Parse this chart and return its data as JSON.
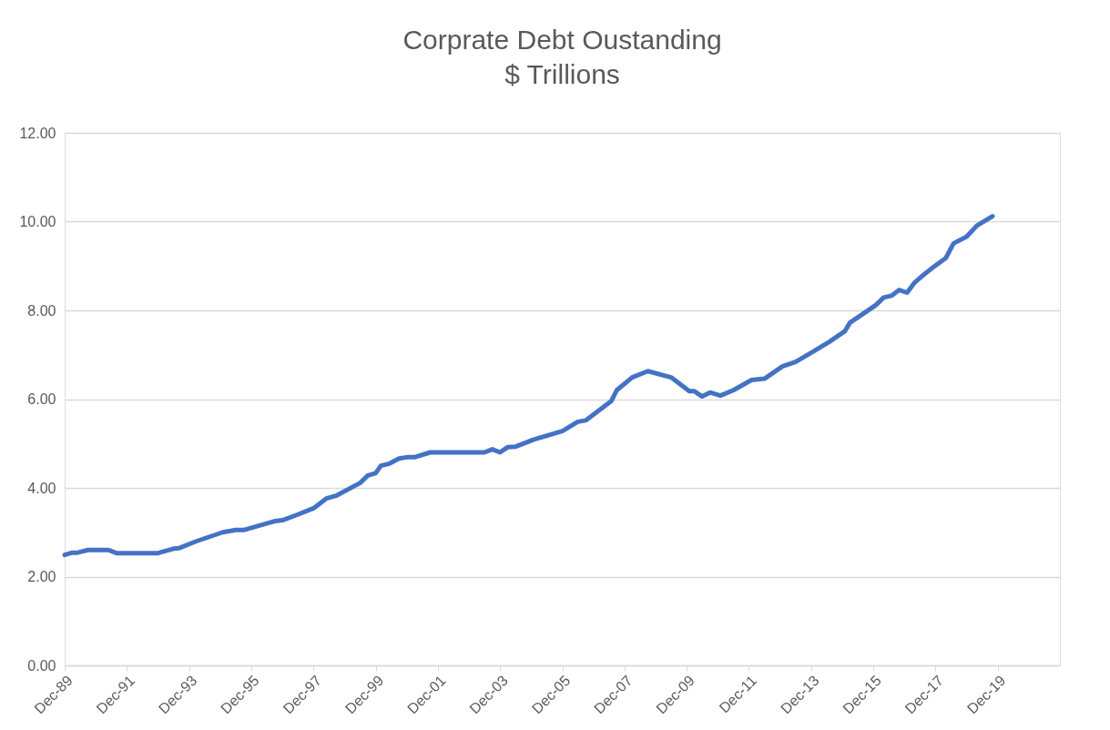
{
  "chart_data": {
    "type": "line",
    "title": "Corprate Debt Oustanding\n$ Trillions",
    "x": [
      "1989-12",
      "1990-03",
      "1990-05",
      "1990-09",
      "1991-05",
      "1991-08",
      "1992-12",
      "1993-06",
      "1993-08",
      "1994-03",
      "1995-01",
      "1995-06",
      "1995-09",
      "1996-09",
      "1996-12",
      "1997-06",
      "1997-12",
      "1998-05",
      "1998-09",
      "1999-06",
      "1999-09",
      "1999-12",
      "2000-02",
      "2000-05",
      "2000-09",
      "2000-12",
      "2001-03",
      "2001-09",
      "2003-06",
      "2003-09",
      "2003-12",
      "2004-03",
      "2004-06",
      "2005-01",
      "2005-12",
      "2006-06",
      "2006-09",
      "2007-07",
      "2007-09",
      "2008-03",
      "2008-09",
      "2009-06",
      "2010-01",
      "2010-03",
      "2010-06",
      "2010-09",
      "2011-01",
      "2011-06",
      "2012-01",
      "2012-06",
      "2013-01",
      "2013-06",
      "2014-01",
      "2014-07",
      "2015-01",
      "2015-03",
      "2016-01",
      "2016-04",
      "2016-07",
      "2016-10",
      "2017-01",
      "2017-04",
      "2017-07",
      "2017-11",
      "2018-04",
      "2018-07",
      "2018-12",
      "2019-04",
      "2019-10"
    ],
    "series": [
      {
        "color": "#4472c4",
        "values": [
          2.49,
          2.54,
          2.54,
          2.6,
          2.6,
          2.53,
          2.53,
          2.63,
          2.64,
          2.8,
          3.0,
          3.05,
          3.05,
          3.25,
          3.27,
          3.4,
          3.54,
          3.76,
          3.83,
          4.11,
          4.28,
          4.33,
          4.5,
          4.54,
          4.66,
          4.69,
          4.69,
          4.8,
          4.8,
          4.87,
          4.8,
          4.92,
          4.93,
          5.09,
          5.28,
          5.49,
          5.52,
          5.96,
          6.2,
          6.49,
          6.63,
          6.49,
          6.18,
          6.18,
          6.06,
          6.15,
          6.08,
          6.2,
          6.43,
          6.46,
          6.74,
          6.84,
          7.08,
          7.29,
          7.53,
          7.72,
          8.12,
          8.29,
          8.33,
          8.46,
          8.4,
          8.63,
          8.78,
          8.97,
          9.18,
          9.51,
          9.66,
          9.91,
          10.12
        ]
      }
    ],
    "xlim": [
      "1989-12",
      "2021-12"
    ],
    "xticks": [
      {
        "value": "1989-12",
        "label": "Dec-89"
      },
      {
        "value": "1991-12",
        "label": "Dec-91"
      },
      {
        "value": "1993-12",
        "label": "Dec-93"
      },
      {
        "value": "1995-12",
        "label": "Dec-95"
      },
      {
        "value": "1997-12",
        "label": "Dec-97"
      },
      {
        "value": "1999-12",
        "label": "Dec-99"
      },
      {
        "value": "2001-12",
        "label": "Dec-01"
      },
      {
        "value": "2003-12",
        "label": "Dec-03"
      },
      {
        "value": "2005-12",
        "label": "Dec-05"
      },
      {
        "value": "2007-12",
        "label": "Dec-07"
      },
      {
        "value": "2009-12",
        "label": "Dec-09"
      },
      {
        "value": "2011-12",
        "label": "Dec-11"
      },
      {
        "value": "2013-12",
        "label": "Dec-13"
      },
      {
        "value": "2015-12",
        "label": "Dec-15"
      },
      {
        "value": "2017-12",
        "label": "Dec-17"
      },
      {
        "value": "2019-12",
        "label": "Dec-19"
      }
    ],
    "ylim": [
      0,
      12
    ],
    "yticks": [
      {
        "value": 0,
        "label": "0.00"
      },
      {
        "value": 2,
        "label": "2.00"
      },
      {
        "value": 4,
        "label": "4.00"
      },
      {
        "value": 6,
        "label": "6.00"
      },
      {
        "value": 8,
        "label": "8.00"
      },
      {
        "value": 10,
        "label": "10.00"
      },
      {
        "value": 12,
        "label": "12.00"
      }
    ],
    "grid": "y",
    "marker": "none",
    "line_style": "solid"
  }
}
